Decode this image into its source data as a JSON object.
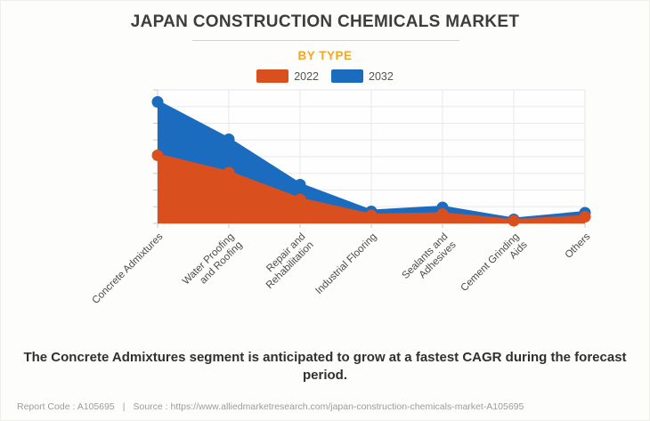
{
  "header": {
    "title": "JAPAN CONSTRUCTION CHEMICALS MARKET",
    "subtitle": "BY TYPE"
  },
  "chart_data": {
    "type": "area",
    "title": "JAPAN CONSTRUCTION CHEMICALS MARKET",
    "subtitle": "BY TYPE",
    "categories": [
      "Concrete Admixtures",
      "Water Proofing and Roofing",
      "Repair and Rehabilitation",
      "Industrial Flooring",
      "Sealants and Adhesives",
      "Cement Grinding Aids",
      "Others"
    ],
    "category_label_lines": [
      [
        "Concrete Admixtures"
      ],
      [
        "Water Proofing",
        "and Roofing"
      ],
      [
        "Repair and",
        "Rehabilitation"
      ],
      [
        "Industrial Flooring"
      ],
      [
        "Sealants and",
        "Adhesives"
      ],
      [
        "Cement Grinding",
        "Aids"
      ],
      [
        "Others"
      ]
    ],
    "series": [
      {
        "name": "2022",
        "color": "#d9501e",
        "values": [
          51,
          38,
          18,
          6,
          7,
          2,
          5
        ]
      },
      {
        "name": "2032",
        "color": "#1b6bbf",
        "values": [
          91,
          63,
          29,
          9,
          12,
          3,
          8
        ]
      }
    ],
    "ylim": [
      0,
      100
    ],
    "y_gridlines": 9,
    "grid": true,
    "y_tick_labels_visible": false,
    "legend_position": "top-center",
    "xlabel": "",
    "ylabel": ""
  },
  "caption": "The Concrete Admixtures segment is anticipated to grow at a fastest CAGR during the forecast period.",
  "footer": {
    "report_code": "Report Code : A105695",
    "separator": "|",
    "source": "Source : https://www.alliedmarketresearch.com/japan-construction-chemicals-market-A105695"
  },
  "colors": {
    "accent_subtitle": "#f5a623",
    "series_2022": "#d9501e",
    "series_2032": "#1b6bbf",
    "gridline": "#e8e8e8",
    "axis": "#c9c9c9",
    "title_text": "#3d3d3d",
    "footer_text": "#9c9c9c"
  }
}
